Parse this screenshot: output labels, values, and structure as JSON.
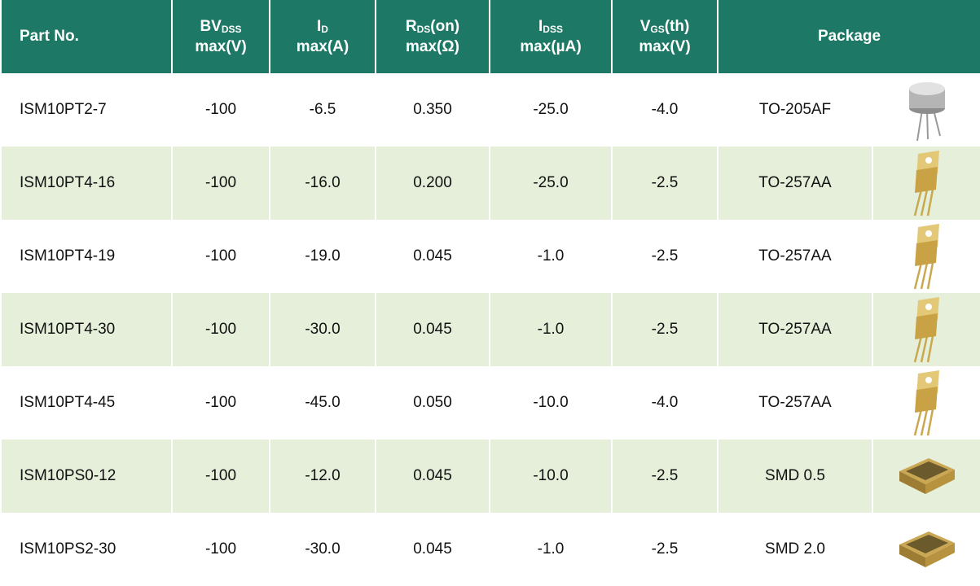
{
  "table": {
    "headers": [
      "Part No.",
      {
        "base": "BV",
        "sub": "DSS",
        "line2": "max(V)"
      },
      {
        "base": "I",
        "sub": "D",
        "line2": "max(A)"
      },
      {
        "base": "R",
        "sub": "DS",
        "after": "(on)",
        "line2": "max(Ω)"
      },
      {
        "base": "I",
        "sub": "DSS",
        "line2": "max(µA)"
      },
      {
        "base": "V",
        "sub": "GS",
        "after": "(th)",
        "line2": "max(V)"
      },
      "Package"
    ],
    "rows": [
      [
        "ISM10PT2-7",
        "-100",
        "-6.5",
        "0.350",
        "-25.0",
        "-4.0",
        "TO-205AF"
      ],
      [
        "ISM10PT4-16",
        "-100",
        "-16.0",
        "0.200",
        "-25.0",
        "-2.5",
        "TO-257AA"
      ],
      [
        "ISM10PT4-19",
        "-100",
        "-19.0",
        "0.045",
        "-1.0",
        "-2.5",
        "TO-257AA"
      ],
      [
        "ISM10PT4-30",
        "-100",
        "-30.0",
        "0.045",
        "-1.0",
        "-2.5",
        "TO-257AA"
      ],
      [
        "ISM10PT4-45",
        "-100",
        "-45.0",
        "0.050",
        "-10.0",
        "-4.0",
        "TO-257AA"
      ],
      [
        "ISM10PS0-12",
        "-100",
        "-12.0",
        "0.045",
        "-10.0",
        "-2.5",
        "SMD 0.5"
      ],
      [
        "ISM10PS2-30",
        "-100",
        "-30.0",
        "0.045",
        "-1.0",
        "-2.5",
        "SMD 2.0"
      ]
    ]
  }
}
